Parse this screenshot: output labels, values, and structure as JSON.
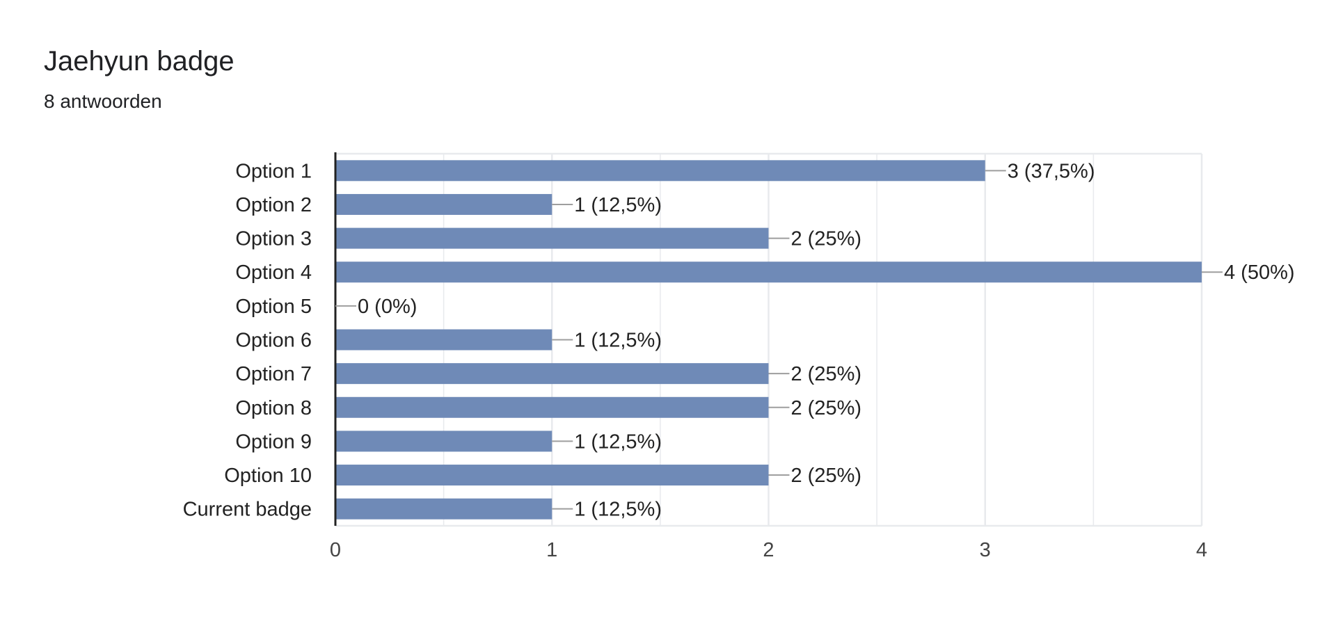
{
  "header": {
    "title": "Jaehyun badge",
    "subtitle": "8 antwoorden"
  },
  "colors": {
    "bar": "#6f8ab7",
    "grid": "#e8eaed",
    "axis": "#222222",
    "leader": "#9e9e9e",
    "text": "#222222"
  },
  "chart_data": {
    "type": "bar",
    "orientation": "horizontal",
    "title": "Jaehyun badge",
    "subtitle": "8 antwoorden",
    "categories": [
      "Option 1",
      "Option 2",
      "Option 3",
      "Option 4",
      "Option 5",
      "Option 6",
      "Option 7",
      "Option 8",
      "Option 9",
      "Option 10",
      "Current badge"
    ],
    "values": [
      3,
      1,
      2,
      4,
      0,
      1,
      2,
      2,
      1,
      2,
      1
    ],
    "data_labels": [
      "3 (37,5%)",
      "1 (12,5%)",
      "2 (25%)",
      "4 (50%)",
      "0 (0%)",
      "1 (12,5%)",
      "2 (25%)",
      "2 (25%)",
      "1 (12,5%)",
      "2 (25%)",
      "1 (12,5%)"
    ],
    "xlim": [
      0,
      4
    ],
    "xticks": [
      0,
      1,
      2,
      3,
      4
    ],
    "minor_gridlines": [
      0.5,
      1.5,
      2.5,
      3.5
    ],
    "grid": true,
    "legend": "none",
    "xlabel": "",
    "ylabel": ""
  }
}
